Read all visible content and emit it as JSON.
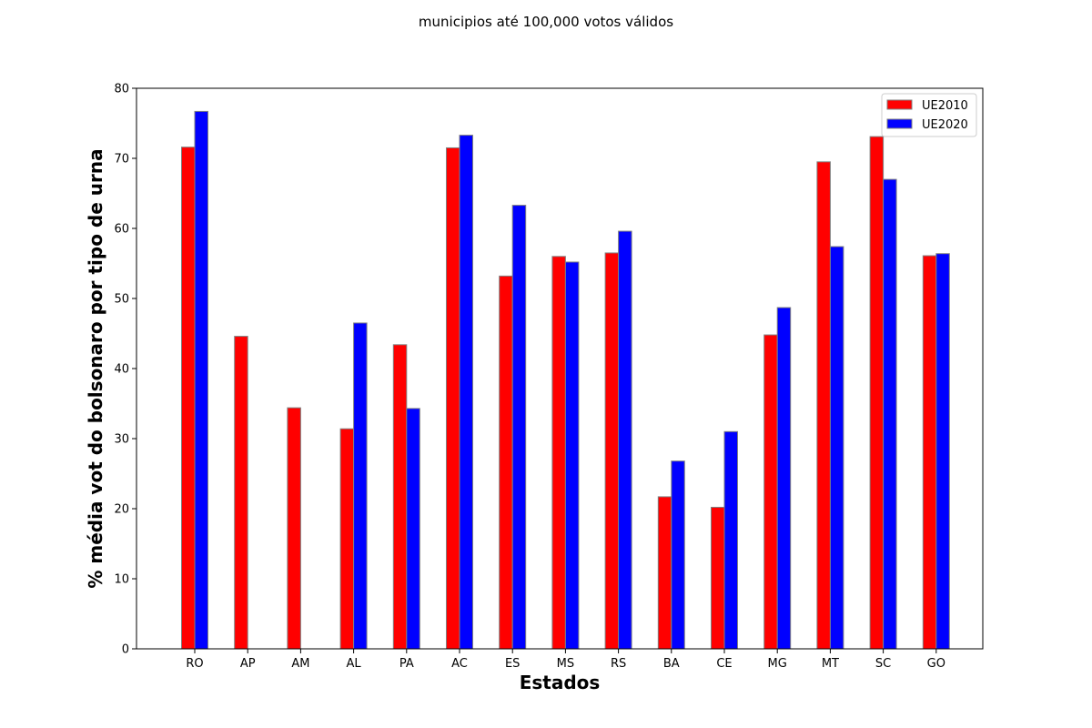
{
  "chart_data": {
    "type": "bar",
    "title": "municipios até 100,000 votos válidos",
    "xlabel": "Estados",
    "ylabel": "% média vot do bolsonaro por tipo de urna",
    "categories": [
      "RO",
      "AP",
      "AM",
      "AL",
      "PA",
      "AC",
      "ES",
      "MS",
      "RS",
      "BA",
      "CE",
      "MG",
      "MT",
      "SC",
      "GO"
    ],
    "series": [
      {
        "name": "UE2010",
        "color": "#ff0000",
        "values": [
          71.6,
          44.6,
          34.4,
          31.4,
          43.4,
          71.5,
          53.2,
          56.0,
          56.5,
          21.7,
          20.2,
          44.8,
          69.5,
          73.1,
          56.1
        ]
      },
      {
        "name": "UE2020",
        "color": "#0000ff",
        "values": [
          76.7,
          null,
          null,
          46.5,
          34.3,
          73.3,
          63.3,
          55.2,
          59.6,
          26.8,
          31.0,
          48.7,
          57.4,
          67.0,
          56.4
        ]
      }
    ],
    "ylim": [
      0,
      80
    ],
    "yticks": [
      0,
      10,
      20,
      30,
      40,
      50,
      60,
      70,
      80
    ],
    "grid": false,
    "legend": "top-right"
  }
}
